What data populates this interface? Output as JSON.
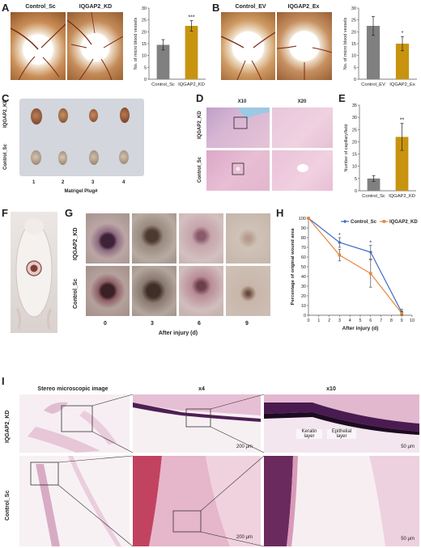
{
  "panels": {
    "A": {
      "letter": "A",
      "photo_titles": [
        "Control_Sc",
        "IQGAP2_KD"
      ],
      "chart_data": {
        "type": "bar",
        "categories": [
          "Control_Sc",
          "IQGAP2_KD"
        ],
        "values": [
          14.5,
          22.5
        ],
        "errors": [
          2.2,
          2.2
        ],
        "ylabel": "No. of micro blood vessels",
        "ylim": [
          0,
          30
        ],
        "yticks": [
          "0",
          "5",
          "10",
          "15",
          "20",
          "25",
          "30"
        ],
        "significance": [
          "",
          "***"
        ],
        "colors": [
          "#808080",
          "#c8940f"
        ]
      }
    },
    "B": {
      "letter": "B",
      "photo_titles": [
        "Control_EV",
        "IQGAP2_Ex"
      ],
      "chart_data": {
        "type": "bar",
        "categories": [
          "Control_EV",
          "IQGAP2_Ex"
        ],
        "values": [
          22.5,
          15
        ],
        "errors": [
          4,
          3
        ],
        "ylabel": "No. of micro blood vessels",
        "ylim": [
          0,
          30
        ],
        "yticks": [
          "0",
          "5",
          "10",
          "15",
          "20",
          "25",
          "30"
        ],
        "significance": [
          "",
          "*"
        ],
        "colors": [
          "#808080",
          "#c8940f"
        ]
      }
    },
    "C": {
      "letter": "C",
      "row_labels": [
        "IQGAP2_KD",
        "Control_Sc"
      ],
      "plug_numbers": [
        "1",
        "2",
        "3",
        "4"
      ],
      "xlabel": "Matrigel Plug#"
    },
    "D": {
      "letter": "D",
      "col_labels": [
        "X10",
        "X20"
      ],
      "row_labels": [
        "IQGAP2_KD",
        "Control_Sc"
      ]
    },
    "E": {
      "letter": "E",
      "chart_data": {
        "type": "bar",
        "categories": [
          "Control_Sc",
          "IQGAP2_KD"
        ],
        "values": [
          5,
          22
        ],
        "errors": [
          1.2,
          5.5
        ],
        "ylabel": "Number of capillary/field",
        "ylim": [
          0,
          35
        ],
        "yticks": [
          "0",
          "5",
          "10",
          "15",
          "20",
          "25",
          "30",
          "35"
        ],
        "significance": [
          "",
          "**"
        ],
        "colors": [
          "#808080",
          "#c8940f"
        ]
      }
    },
    "F": {
      "letter": "F"
    },
    "G": {
      "letter": "G",
      "row_labels": [
        "IQGAP2_KD",
        "Control_Sc"
      ],
      "day_labels": [
        "0",
        "3",
        "6",
        "9"
      ],
      "xlabel": "After injury (d)"
    },
    "H": {
      "letter": "H",
      "chart_data": {
        "type": "line",
        "x": [
          0,
          3,
          6,
          9
        ],
        "series": [
          {
            "name": "Control_Sc",
            "values": [
              100,
              75,
              65,
              3
            ],
            "errors": [
              0,
              5,
              7,
              3
            ],
            "color": "#3d6bc4"
          },
          {
            "name": "IQGAP2_KD",
            "values": [
              100,
              62,
              43,
              2
            ],
            "errors": [
              0,
              6,
              14,
              2
            ],
            "color": "#e8843a"
          }
        ],
        "ylabel": "Percentage of original wound area",
        "xlabel": "After injury (d)",
        "xlim": [
          0,
          10
        ],
        "ylim": [
          0,
          100
        ],
        "xticks": [
          "0",
          "1",
          "2",
          "3",
          "4",
          "5",
          "6",
          "7",
          "8",
          "9",
          "10"
        ],
        "yticks": [
          "0",
          "10",
          "20",
          "30",
          "40",
          "50",
          "60",
          "70",
          "80",
          "90",
          "100"
        ],
        "significance": [
          {
            "x": 3,
            "label": "*"
          },
          {
            "x": 6,
            "label": "*"
          }
        ]
      }
    },
    "I": {
      "letter": "I",
      "col_labels": [
        "Stereo microscopic  image",
        "x4",
        "x10"
      ],
      "row_labels": [
        "IQGAP2_KD",
        "Control_Sc"
      ],
      "annotations": [
        "Keratin layer",
        "Epithelial layer"
      ],
      "scalebars": [
        "200 μm",
        "50 μm",
        "200 μm",
        "50 μm"
      ]
    }
  }
}
